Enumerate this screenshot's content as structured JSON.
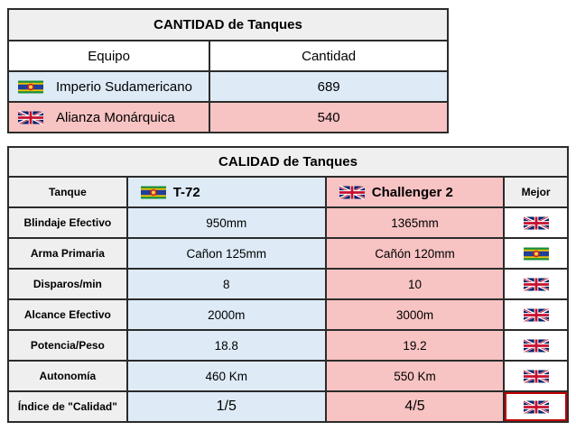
{
  "quantity": {
    "title": "CANTIDAD de Tanques",
    "headers": {
      "team": "Equipo",
      "amount": "Cantidad"
    },
    "rows": [
      {
        "team": "Imperio Sudamericano",
        "flag": "sudamericano-flag-icon",
        "amount": "689"
      },
      {
        "team": "Alianza Monárquica",
        "flag": "union-jack-flag-icon",
        "amount": "540"
      }
    ]
  },
  "quality": {
    "title": "CALIDAD de Tanques",
    "headers": {
      "tank": "Tanque",
      "tank_a": "T-72",
      "tank_b": "Challenger 2",
      "best": "Mejor"
    },
    "rows": [
      {
        "label": "Blindaje Efectivo",
        "a": "950mm",
        "b": "1365mm",
        "best": "union-jack-flag-icon"
      },
      {
        "label": "Arma Primaria",
        "a": "Cañon 125mm",
        "b": "Cañón 120mm",
        "best": "sudamericano-flag-icon"
      },
      {
        "label": "Disparos/min",
        "a": "8",
        "b": "10",
        "best": "union-jack-flag-icon"
      },
      {
        "label": "Alcance Efectivo",
        "a": "2000m",
        "b": "3000m",
        "best": "union-jack-flag-icon"
      },
      {
        "label": "Potencia/Peso",
        "a": "18.8",
        "b": "19.2",
        "best": "union-jack-flag-icon"
      },
      {
        "label": "Autonomía",
        "a": "460 Km",
        "b": "550 Km",
        "best": "union-jack-flag-icon"
      },
      {
        "label": "Índice de \"Calidad\"",
        "a": "1/5",
        "b": "4/5",
        "best": "union-jack-flag-icon"
      }
    ]
  },
  "colors": {
    "blue": "#deebf7",
    "pink": "#f8c3c3",
    "header_gray": "#efefef",
    "highlight": "#c00000"
  }
}
